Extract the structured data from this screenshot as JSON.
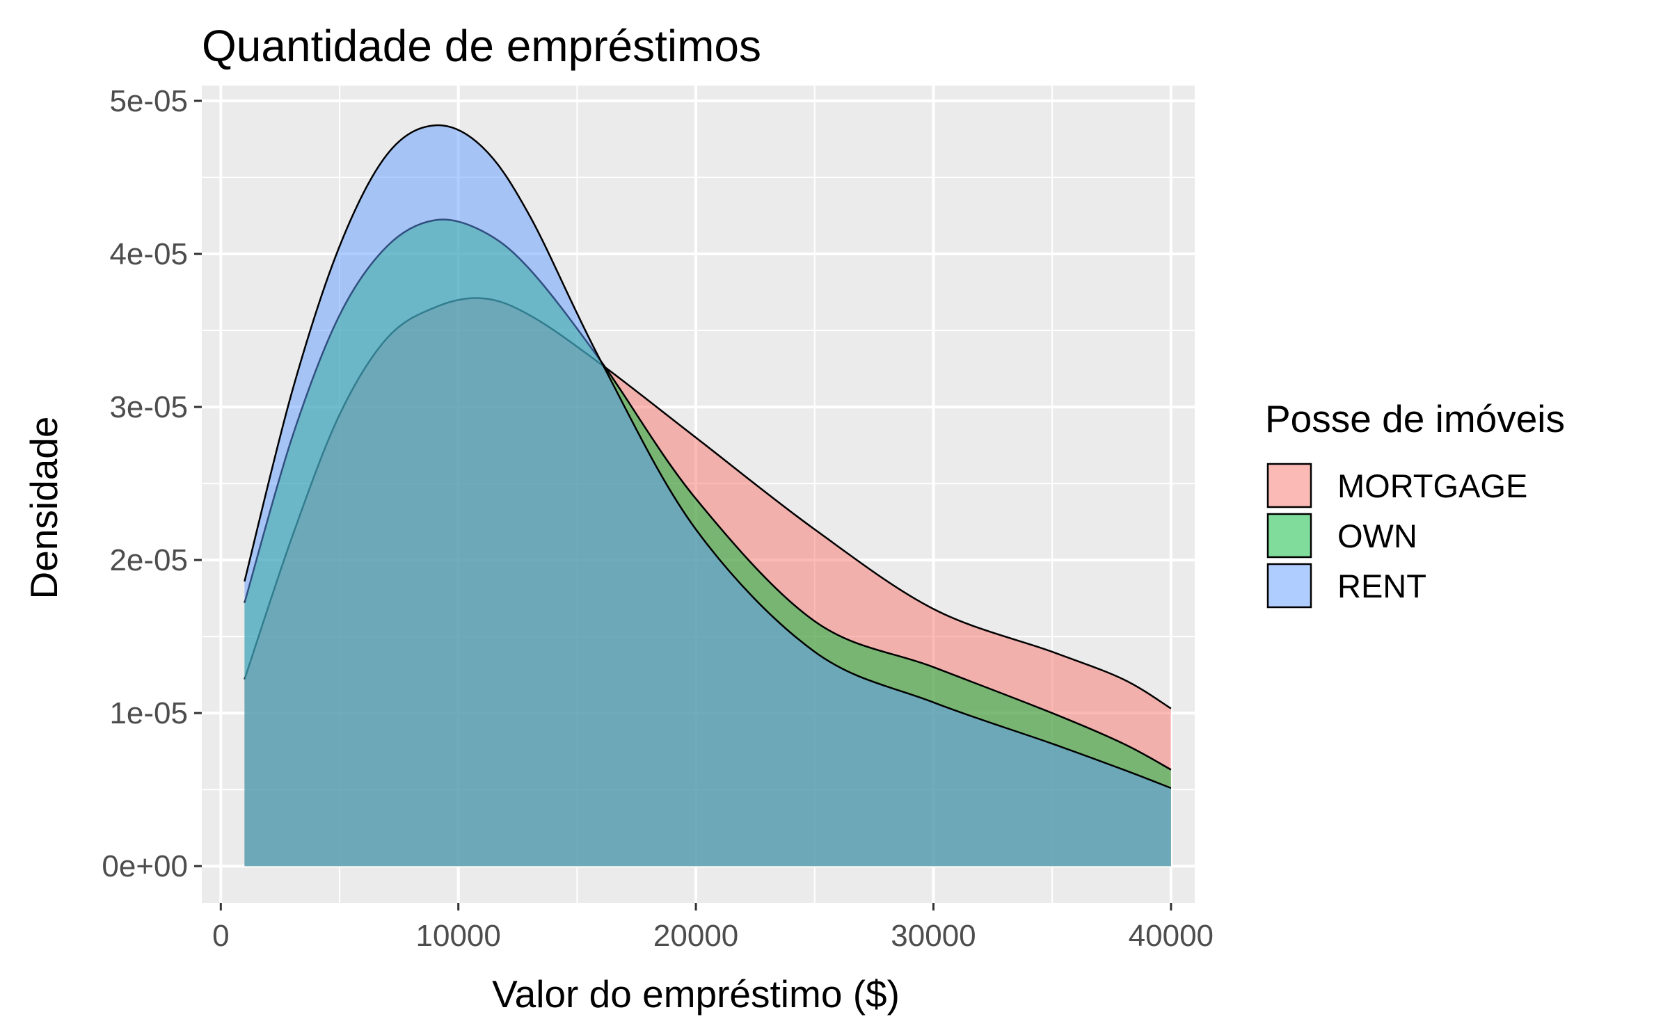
{
  "chart_data": {
    "type": "area",
    "title": "Quantidade de empréstimos",
    "xlabel": "Valor do empréstimo ($)",
    "ylabel": "Densidade",
    "xlim": [
      -800,
      41000
    ],
    "ylim": [
      -2.4e-06,
      5.1e-05
    ],
    "x_ticks": [
      0,
      10000,
      20000,
      30000,
      40000
    ],
    "x_tick_labels": [
      "0",
      "10000",
      "20000",
      "30000",
      "40000"
    ],
    "y_ticks": [
      0,
      1e-05,
      2e-05,
      3e-05,
      4e-05,
      5e-05
    ],
    "y_tick_labels": [
      "0e+00",
      "1e-05",
      "2e-05",
      "3e-05",
      "4e-05",
      "5e-05"
    ],
    "grid": true,
    "legend": {
      "title": "Posse de imóveis",
      "position": "right"
    },
    "x": [
      1000,
      3000,
      5000,
      7000,
      9000,
      11000,
      13000,
      16000,
      20000,
      25000,
      30000,
      35000,
      38000,
      40000
    ],
    "series": [
      {
        "name": "MORTGAGE",
        "color": "#F8766D",
        "values": [
          1.22e-05,
          2.15e-05,
          2.95e-05,
          3.45e-05,
          3.65e-05,
          3.71e-05,
          3.6e-05,
          3.28e-05,
          2.8e-05,
          2.2e-05,
          1.68e-05,
          1.4e-05,
          1.22e-05,
          1.03e-05
        ]
      },
      {
        "name": "OWN",
        "color": "#00BA38",
        "values": [
          1.72e-05,
          2.8e-05,
          3.6e-05,
          4.05e-05,
          4.22e-05,
          4.15e-05,
          3.9e-05,
          3.3e-05,
          2.4e-05,
          1.6e-05,
          1.3e-05,
          1e-05,
          8e-06,
          6.3e-06
        ]
      },
      {
        "name": "RENT",
        "color": "#619CFF",
        "values": [
          1.86e-05,
          3.1e-05,
          4.05e-05,
          4.65e-05,
          4.84e-05,
          4.7e-05,
          4.25e-05,
          3.3e-05,
          2.2e-05,
          1.4e-05,
          1.07e-05,
          8e-06,
          6.3e-06,
          5.1e-06
        ]
      }
    ]
  }
}
